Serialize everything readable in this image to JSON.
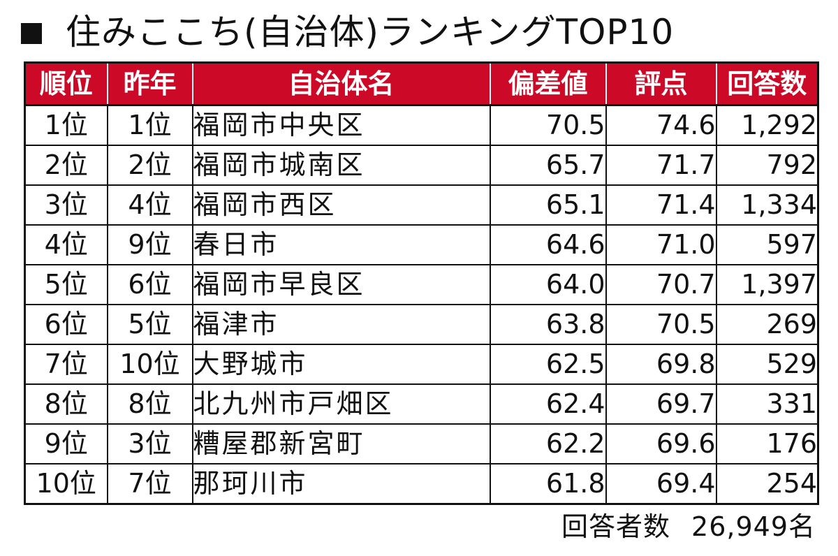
{
  "title": "住みここち(自治体)ランキングTOP10",
  "table": {
    "headers": [
      "順位",
      "昨年",
      "自治体名",
      "偏差値",
      "評点",
      "回答数"
    ],
    "rows": [
      {
        "rank": "1位",
        "prev": "1位",
        "name": "福岡市中央区",
        "score": "70.5",
        "rating": "74.6",
        "responses": "1,292"
      },
      {
        "rank": "2位",
        "prev": "2位",
        "name": "福岡市城南区",
        "score": "65.7",
        "rating": "71.7",
        "responses": "792"
      },
      {
        "rank": "3位",
        "prev": "4位",
        "name": "福岡市西区",
        "score": "65.1",
        "rating": "71.4",
        "responses": "1,334"
      },
      {
        "rank": "4位",
        "prev": "9位",
        "name": "春日市",
        "score": "64.6",
        "rating": "71.0",
        "responses": "597"
      },
      {
        "rank": "5位",
        "prev": "6位",
        "name": "福岡市早良区",
        "score": "64.0",
        "rating": "70.7",
        "responses": "1,397"
      },
      {
        "rank": "6位",
        "prev": "5位",
        "name": "福津市",
        "score": "63.8",
        "rating": "70.5",
        "responses": "269"
      },
      {
        "rank": "7位",
        "prev": "10位",
        "name": "大野城市",
        "score": "62.5",
        "rating": "69.8",
        "responses": "529"
      },
      {
        "rank": "8位",
        "prev": "8位",
        "name": "北九州市戸畑区",
        "score": "62.4",
        "rating": "69.7",
        "responses": "331"
      },
      {
        "rank": "9位",
        "prev": "3位",
        "name": "糟屋郡新宮町",
        "score": "62.2",
        "rating": "69.6",
        "responses": "176"
      },
      {
        "rank": "10位",
        "prev": "7位",
        "name": "那珂川市",
        "score": "61.8",
        "rating": "69.4",
        "responses": "254"
      }
    ]
  },
  "footer": {
    "label": "回答者数",
    "value": "26,949名"
  },
  "colors": {
    "header_background": "#cc0a27",
    "header_text": "#ffffff",
    "text": "#111111",
    "border": "#111111"
  }
}
